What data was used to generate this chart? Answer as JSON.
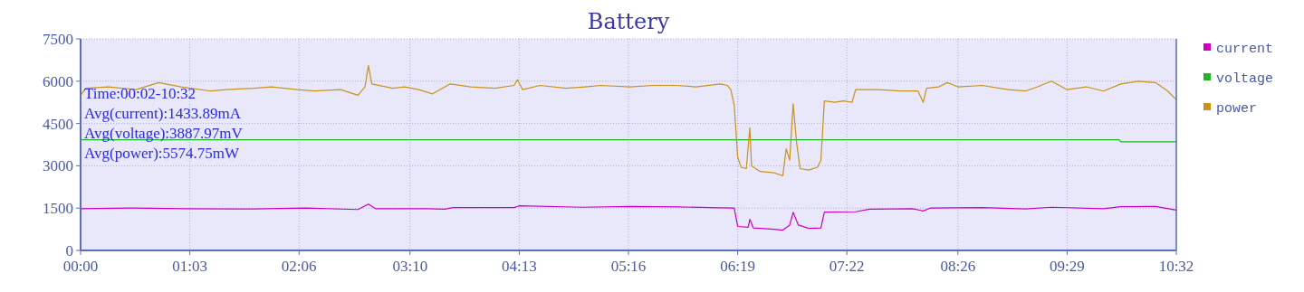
{
  "chart_data": {
    "type": "line",
    "title": "Battery",
    "annotations": [
      "Time:00:02-10:32",
      "Avg(current):1433.89mA",
      "Avg(voltage):3887.97mV",
      "Avg(power):5574.75mW"
    ],
    "xlim": [
      0,
      632
    ],
    "xticks": [
      {
        "value": 0,
        "label": "00:00"
      },
      {
        "value": 63,
        "label": "01:03"
      },
      {
        "value": 126,
        "label": "02:06"
      },
      {
        "value": 190,
        "label": "03:10"
      },
      {
        "value": 253,
        "label": "04:13"
      },
      {
        "value": 316,
        "label": "05:16"
      },
      {
        "value": 379,
        "label": "06:19"
      },
      {
        "value": 442,
        "label": "07:22"
      },
      {
        "value": 506,
        "label": "08:26"
      },
      {
        "value": 569,
        "label": "09:29"
      },
      {
        "value": 632,
        "label": "10:32"
      }
    ],
    "ylim": [
      0,
      7500
    ],
    "yticks": [
      0,
      1500,
      3000,
      4500,
      6000,
      7500
    ],
    "grid": true,
    "legend": "right",
    "marker": "none",
    "line_style": "solid",
    "series": [
      {
        "name": "current",
        "color": "#cc00bb",
        "x": [
          0,
          30,
          60,
          100,
          130,
          160,
          166,
          170,
          200,
          210,
          215,
          250,
          253,
          290,
          317,
          345,
          369,
          377,
          379,
          385,
          386,
          388,
          400,
          405,
          409,
          411,
          414,
          420,
          427,
          429,
          447,
          455,
          480,
          486,
          490,
          520,
          545,
          560,
          590,
          600,
          620,
          632
        ],
        "values": [
          1480,
          1500,
          1480,
          1470,
          1500,
          1450,
          1640,
          1480,
          1480,
          1460,
          1520,
          1520,
          1580,
          1530,
          1560,
          1540,
          1510,
          1500,
          850,
          820,
          1100,
          800,
          750,
          720,
          900,
          1350,
          900,
          780,
          800,
          1360,
          1370,
          1460,
          1480,
          1400,
          1500,
          1520,
          1470,
          1530,
          1480,
          1550,
          1560,
          1430
        ]
      },
      {
        "name": "voltage",
        "color": "#22b422",
        "x": [
          0,
          599,
          600,
          632
        ],
        "values": [
          3920,
          3920,
          3850,
          3850
        ]
      },
      {
        "name": "power",
        "color": "#c8921c",
        "x": [
          0,
          3,
          16,
          32,
          45,
          58,
          75,
          84,
          100,
          110,
          125,
          135,
          150,
          160,
          164,
          166,
          168,
          180,
          187,
          195,
          203,
          213,
          225,
          239,
          250,
          252,
          255,
          265,
          280,
          291,
          300,
          317,
          330,
          343,
          355,
          369,
          373,
          375,
          377,
          379,
          381,
          384,
          386,
          387,
          392,
          400,
          405,
          407,
          409,
          411,
          413,
          415,
          420,
          425,
          427,
          429,
          435,
          440,
          445,
          447,
          460,
          473,
          483,
          486,
          488,
          495,
          500,
          506,
          520,
          535,
          545,
          552,
          560,
          569,
          580,
          590,
          600,
          610,
          620,
          627,
          632
        ],
        "values": [
          5500,
          5750,
          5800,
          5700,
          5950,
          5800,
          5650,
          5700,
          5750,
          5800,
          5700,
          5650,
          5700,
          5500,
          5800,
          6550,
          5900,
          5750,
          5800,
          5700,
          5550,
          5900,
          5800,
          5750,
          5850,
          6050,
          5700,
          5850,
          5750,
          5800,
          5850,
          5800,
          5850,
          5850,
          5800,
          5900,
          5850,
          5700,
          5150,
          3300,
          2950,
          2900,
          4350,
          3000,
          2800,
          2750,
          2650,
          3600,
          3200,
          5200,
          3800,
          2900,
          2850,
          2950,
          3200,
          5300,
          5250,
          5300,
          5250,
          5700,
          5700,
          5650,
          5650,
          5250,
          5750,
          5800,
          5950,
          5800,
          5850,
          5700,
          5650,
          5800,
          6000,
          5700,
          5800,
          5650,
          5900,
          6000,
          5950,
          5650,
          5350
        ]
      }
    ]
  }
}
